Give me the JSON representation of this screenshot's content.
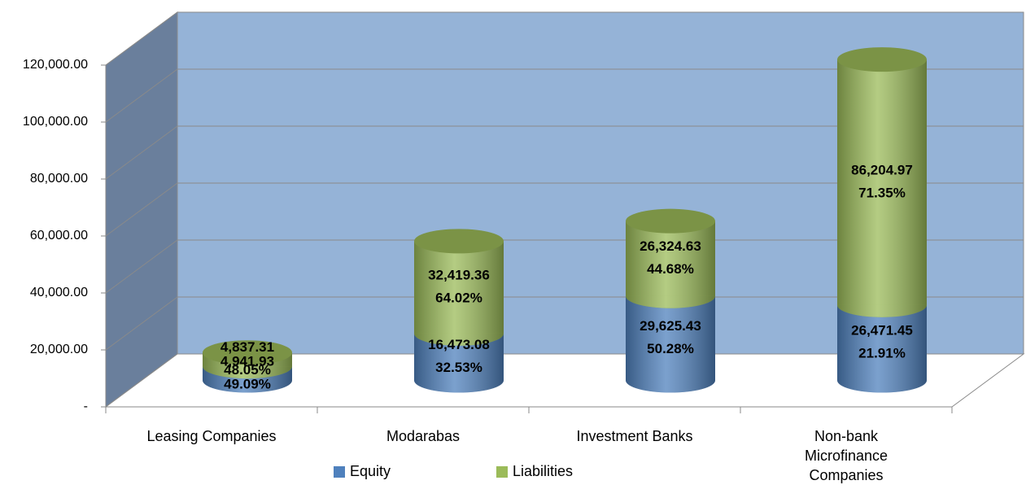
{
  "chart_data": {
    "type": "cylinder-stacked",
    "categories": [
      "Leasing Companies",
      "Modarabas",
      "Investment Banks",
      "Non-bank\nMicrofinance\nCompanies"
    ],
    "series": [
      {
        "name": "Equity",
        "color": "#4f81bd",
        "values": [
          4941.93,
          16473.08,
          29625.43,
          26471.45
        ],
        "value_labels": [
          "4,941.93",
          "16,473.08",
          "29,625.43",
          "26,471.45"
        ],
        "percent_labels": [
          "49.09%",
          "32.53%",
          "50.28%",
          "21.91%"
        ]
      },
      {
        "name": "Liabilities",
        "color": "#9bbb59",
        "values": [
          4837.31,
          32419.36,
          26324.63,
          86204.97
        ],
        "value_labels": [
          "4,837.31",
          "32,419.36",
          "26,324.63",
          "86,204.97"
        ],
        "percent_labels": [
          "48.05%",
          "64.02%",
          "44.68%",
          "71.35%"
        ]
      }
    ],
    "ylim": [
      0,
      120000
    ],
    "yticks": [
      {
        "value": 0,
        "label": "-"
      },
      {
        "value": 20000,
        "label": "20,000.00"
      },
      {
        "value": 40000,
        "label": "40,000.00"
      },
      {
        "value": 60000,
        "label": "60,000.00"
      },
      {
        "value": 80000,
        "label": "80,000.00"
      },
      {
        "value": 100000,
        "label": "100,000.00"
      },
      {
        "value": 120000,
        "label": "120,000.00"
      }
    ],
    "grid": true,
    "legend": "bottom"
  }
}
